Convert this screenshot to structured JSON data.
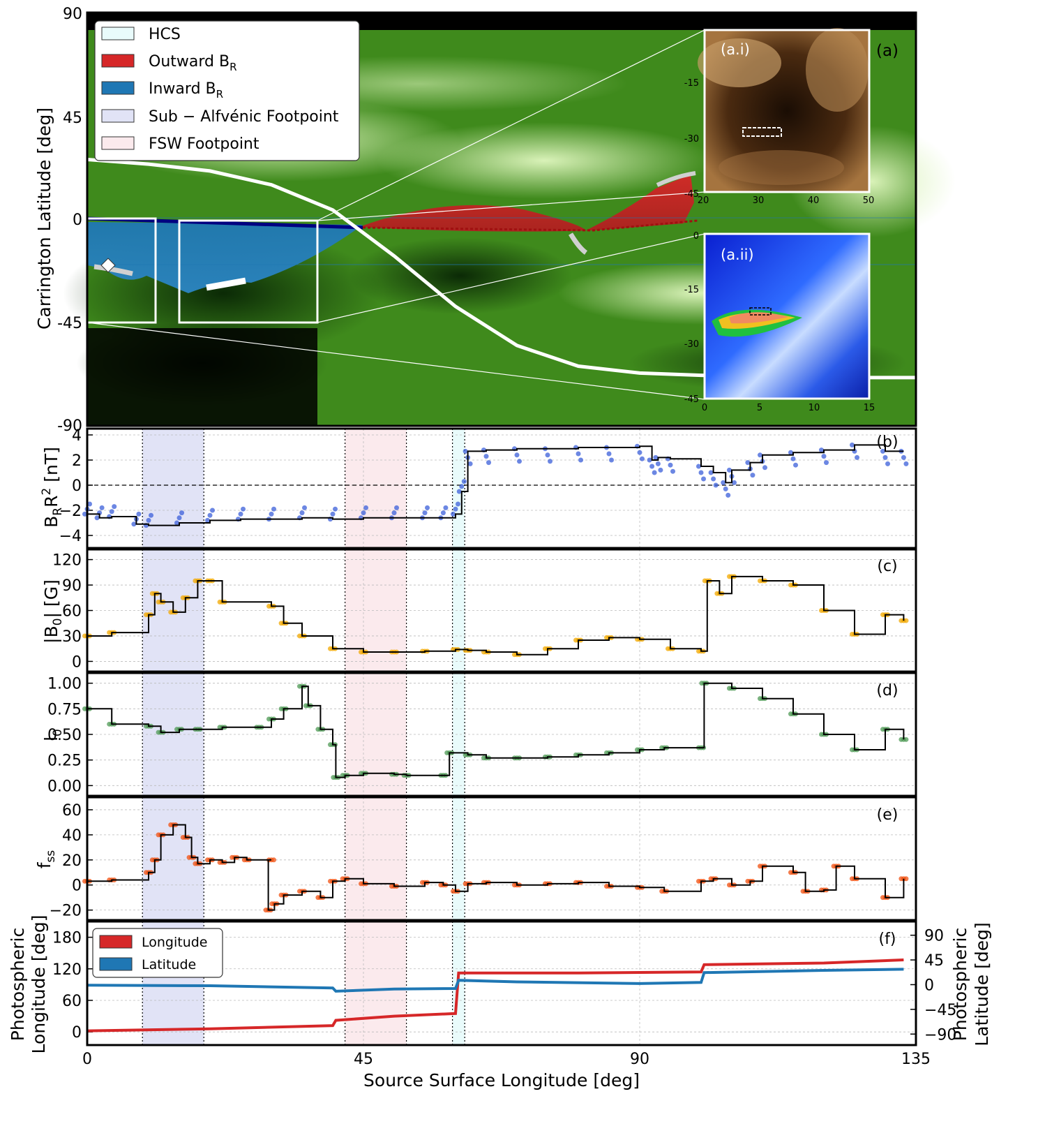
{
  "figure": {
    "xlabel": "Source Surface Longitude [deg]",
    "xticks": [
      "0",
      "45",
      "90",
      "135"
    ],
    "xlim": [
      0,
      135
    ]
  },
  "panel_a": {
    "label": "(a)",
    "ylabel": "Carrington Latitude [deg]",
    "yticks": [
      "90",
      "45",
      "0",
      "-45",
      "-90"
    ],
    "ylim": [
      -90,
      90
    ],
    "legend": {
      "placement": "top-left",
      "items": [
        {
          "label": "HCS",
          "sub": "",
          "color": "#e9fbfb"
        },
        {
          "label": "Outward B",
          "sub": "R",
          "color": "#d62728"
        },
        {
          "label": "Inward B",
          "sub": "R",
          "color": "#1f77b4"
        },
        {
          "label": "Sub − Alfvénic Footpoint",
          "sub": "",
          "color": "#e1e3f6"
        },
        {
          "label": "FSW Footpoint",
          "sub": "",
          "color": "#fbeaed"
        }
      ]
    },
    "colors": {
      "background": "#3f8a1c",
      "hcs": "#ffffff",
      "outward": "#d62728",
      "inward": "#1f77b4"
    },
    "hcs_curve": {
      "lon": [
        0,
        10,
        20,
        30,
        40,
        50,
        60,
        70,
        80,
        90,
        100,
        110,
        120,
        135
      ],
      "lat": [
        26,
        24,
        21,
        15,
        4,
        -16,
        -38,
        -55,
        -64,
        -67,
        -68,
        -68.5,
        -69,
        -69
      ]
    },
    "inset_i": {
      "label": "(a.i)",
      "xticks": [
        "20",
        "30",
        "40",
        "50"
      ],
      "yticks": [
        "-15",
        "-30",
        "-45"
      ],
      "xlim": [
        20,
        50
      ],
      "ylim": [
        -45,
        0
      ]
    },
    "inset_ii": {
      "label": "(a.ii)",
      "xticks": [
        "0",
        "5",
        "10",
        "15"
      ],
      "yticks": [
        "0",
        "-15",
        "-30",
        "-45"
      ],
      "xlim": [
        0,
        15
      ],
      "ylim": [
        -45,
        0
      ]
    }
  },
  "panel_b": {
    "label": "(b)",
    "ylabel_main": "B",
    "ylabel_sub": "R",
    "ylabel_rest": "R",
    "ylabel_sup": "2",
    "ylabel_unit": " [nT]",
    "yticks": [
      "4",
      "2",
      "0",
      "−2",
      "−4"
    ],
    "ylim": [
      -5,
      4.5
    ]
  },
  "panel_c": {
    "label": "(c)",
    "ylabel_pre": "|B",
    "ylabel_sub": "0",
    "ylabel_post": "| [G]",
    "yticks": [
      "120",
      "90",
      "60",
      "30",
      "0"
    ],
    "ylim": [
      -12,
      132
    ]
  },
  "panel_d": {
    "label": "(d)",
    "ylabel_main": "l",
    "ylabel_sub": "0",
    "yticks": [
      "1.00",
      "0.75",
      "0.50",
      "0.25",
      "0.00"
    ],
    "ylim": [
      -0.1,
      1.1
    ]
  },
  "panel_e": {
    "label": "(e)",
    "ylabel_main": "f",
    "ylabel_sub": "ss",
    "yticks": [
      "60",
      "40",
      "20",
      "0",
      "−20"
    ],
    "ylim": [
      -28,
      70
    ]
  },
  "panel_f": {
    "label": "(f)",
    "ylabel_left_1": "Photospheric",
    "ylabel_left_2": "Longitude [deg]",
    "ylabel_right_1": "Photospheric",
    "ylabel_right_2": "Latitude [deg]",
    "yticks_left": [
      "180",
      "120",
      "60",
      "0"
    ],
    "ylim_left": [
      -25,
      210
    ],
    "yticks_right": [
      "90",
      "45",
      "0",
      "−45",
      "−90"
    ],
    "ylim_right": [
      -110,
      115
    ],
    "legend": {
      "placement": "top-left",
      "items": [
        {
          "label": "Longitude",
          "color": "#d62728"
        },
        {
          "label": "Latitude",
          "color": "#1f77b4"
        }
      ]
    }
  },
  "shaded_regions": [
    {
      "name": "sub-alfvenic",
      "x": [
        9,
        19
      ],
      "color": "#e1e3f6"
    },
    {
      "name": "fsw",
      "x": [
        42,
        52
      ],
      "color": "#fbeaed"
    },
    {
      "name": "hcs",
      "x": [
        59.5,
        61.5
      ],
      "color": "#e9fbfb"
    }
  ],
  "chart_data": [
    {
      "type": "line",
      "panel": "b",
      "ylabel": "B_R R^2 [nT]",
      "xlim": [
        0,
        135
      ],
      "ylim": [
        -5,
        4.5
      ],
      "grid": true,
      "series": [
        {
          "x": [
            0,
            2,
            4,
            8,
            10,
            15,
            20,
            25,
            30,
            35,
            40,
            45,
            50,
            55,
            58,
            60,
            61,
            62,
            65,
            70,
            75,
            80,
            85,
            90,
            92,
            93,
            95,
            100,
            102,
            104,
            105,
            108,
            110,
            115,
            120,
            125,
            130,
            133
          ],
          "y": [
            -2.3,
            -2.6,
            -2.5,
            -3.1,
            -3.2,
            -3.0,
            -2.8,
            -2.7,
            -2.7,
            -2.6,
            -2.7,
            -2.6,
            -2.6,
            -2.6,
            -2.6,
            -2.3,
            -0.5,
            2.7,
            2.8,
            2.9,
            2.9,
            3.0,
            3.0,
            3.1,
            2.0,
            2.2,
            2.1,
            1.5,
            1.0,
            0.2,
            1.2,
            1.8,
            2.4,
            2.6,
            2.8,
            3.2,
            2.7,
            2.7
          ]
        }
      ],
      "zero_line": 0
    },
    {
      "type": "line",
      "panel": "c",
      "ylabel": "|B0| [G]",
      "xlim": [
        0,
        135
      ],
      "ylim": [
        -12,
        132
      ],
      "grid": true,
      "series": [
        {
          "x": [
            0,
            4,
            10,
            11,
            12,
            14,
            16,
            18,
            20,
            22,
            30,
            32,
            35,
            40,
            45,
            50,
            55,
            60,
            62,
            65,
            70,
            75,
            80,
            85,
            90,
            95,
            100,
            101,
            103,
            105,
            110,
            115,
            120,
            125,
            130,
            133
          ],
          "y": [
            30,
            34,
            55,
            80,
            70,
            58,
            75,
            95,
            95,
            70,
            65,
            45,
            30,
            15,
            11,
            11,
            12,
            14,
            13,
            11,
            8,
            15,
            25,
            28,
            26,
            15,
            12,
            95,
            80,
            100,
            95,
            90,
            60,
            32,
            55,
            48
          ]
        }
      ]
    },
    {
      "type": "line",
      "panel": "d",
      "ylabel": "l0",
      "xlim": [
        0,
        135
      ],
      "ylim": [
        -0.1,
        1.1
      ],
      "grid": true,
      "series": [
        {
          "x": [
            0,
            4,
            10,
            12,
            15,
            18,
            22,
            28,
            30,
            32,
            35,
            36,
            38,
            40,
            40.5,
            42,
            45,
            50,
            52,
            58,
            59,
            62,
            65,
            70,
            75,
            80,
            85,
            90,
            94,
            100,
            100.5,
            105,
            110,
            115,
            120,
            125,
            130,
            133
          ],
          "y": [
            0.75,
            0.6,
            0.58,
            0.52,
            0.55,
            0.55,
            0.57,
            0.57,
            0.65,
            0.75,
            0.97,
            0.78,
            0.55,
            0.4,
            0.08,
            0.1,
            0.12,
            0.11,
            0.1,
            0.1,
            0.32,
            0.3,
            0.27,
            0.27,
            0.28,
            0.3,
            0.32,
            0.35,
            0.37,
            0.37,
            1.0,
            0.95,
            0.85,
            0.7,
            0.5,
            0.35,
            0.55,
            0.45
          ]
        }
      ]
    },
    {
      "type": "line",
      "panel": "e",
      "ylabel": "f_ss",
      "xlim": [
        0,
        135
      ],
      "ylim": [
        -28,
        70
      ],
      "grid": true,
      "series": [
        {
          "x": [
            0,
            4,
            10,
            11,
            12,
            14,
            16,
            17,
            18,
            20,
            22,
            24,
            26,
            30,
            29.5,
            30.5,
            32,
            35,
            38,
            40,
            42,
            45,
            50,
            55,
            58,
            60,
            62,
            65,
            70,
            75,
            80,
            85,
            90,
            94,
            100,
            102,
            105,
            108,
            110,
            115,
            117,
            120,
            122,
            125,
            130,
            133
          ],
          "y": [
            3,
            4,
            10,
            20,
            40,
            48,
            38,
            22,
            17,
            20,
            18,
            22,
            20,
            20,
            -20,
            -15,
            -8,
            -5,
            -10,
            3,
            5,
            1,
            -1,
            2,
            0,
            -5,
            1,
            2,
            0,
            1,
            2,
            -1,
            -2,
            -5,
            3,
            5,
            0,
            3,
            15,
            10,
            -5,
            -4,
            15,
            5,
            -10,
            5
          ]
        }
      ]
    },
    {
      "type": "line",
      "panel": "f",
      "xlim": [
        0,
        135
      ],
      "grid": true,
      "series": [
        {
          "name": "Longitude",
          "axis": "left",
          "x": [
            0,
            20,
            40,
            40.5,
            50,
            60,
            60.5,
            80,
            100,
            100.5,
            120,
            133
          ],
          "y": [
            2,
            6,
            12,
            22,
            30,
            35,
            112,
            112,
            114,
            128,
            131,
            137
          ]
        },
        {
          "name": "Latitude",
          "axis": "right",
          "x": [
            0,
            20,
            40,
            40.5,
            50,
            60,
            60.5,
            70,
            90,
            100,
            100.5,
            120,
            133
          ],
          "y": [
            -1,
            -2,
            -6,
            -12,
            -8,
            -7,
            8,
            5,
            2,
            4,
            22,
            26,
            28
          ]
        }
      ]
    }
  ]
}
